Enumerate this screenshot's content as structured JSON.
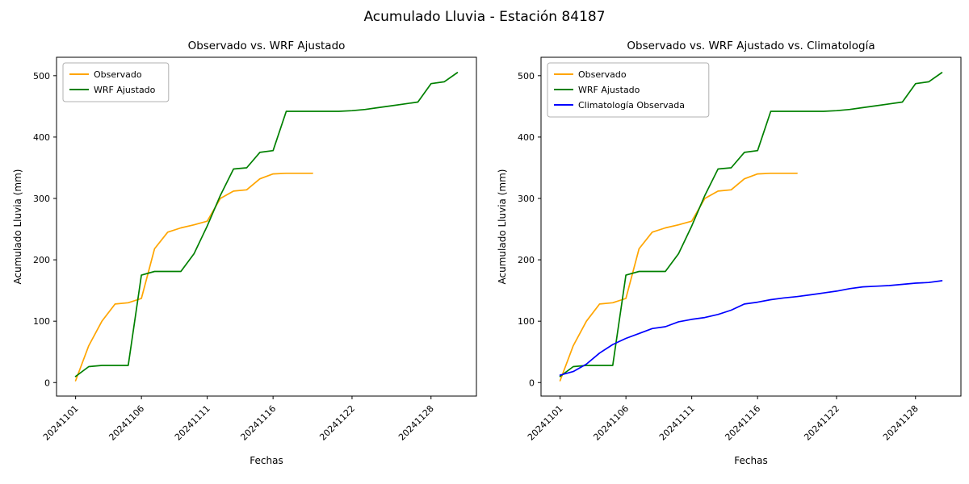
{
  "figure": {
    "suptitle": "Acumulado Lluvia - Estación 84187"
  },
  "chart_data": [
    {
      "type": "line",
      "title": "Observado vs. WRF Ajustado",
      "xlabel": "Fechas",
      "ylabel": "Acumulado Lluvia (mm)",
      "ylim": [
        -22,
        530
      ],
      "yticks": [
        0,
        100,
        200,
        300,
        400,
        500
      ],
      "x": [
        "20241101",
        "20241102",
        "20241103",
        "20241104",
        "20241105",
        "20241106",
        "20241107",
        "20241108",
        "20241109",
        "20241110",
        "20241111",
        "20241112",
        "20241113",
        "20241114",
        "20241115",
        "20241116",
        "20241117",
        "20241118",
        "20241119",
        "20241120",
        "20241121",
        "20241122",
        "20241123",
        "20241124",
        "20241125",
        "20241126",
        "20241127",
        "20241128",
        "20241129",
        "20241130"
      ],
      "xtick_indices": [
        0,
        5,
        10,
        15,
        21,
        27
      ],
      "xtick_labels": [
        "20241101",
        "20241106",
        "20241111",
        "20241116",
        "20241122",
        "20241128"
      ],
      "grid": false,
      "legend_position": "upper left",
      "series": [
        {
          "name": "Observado",
          "color": "#FFA500",
          "values": [
            3,
            60,
            100,
            128,
            130,
            137,
            218,
            245,
            252,
            257,
            263,
            300,
            312,
            314,
            332,
            340,
            341,
            341,
            341
          ]
        },
        {
          "name": "WRF Ajustado",
          "color": "#008000",
          "values": [
            10,
            26,
            28,
            28,
            28,
            175,
            181,
            181,
            181,
            210,
            255,
            305,
            348,
            350,
            375,
            378,
            442,
            442,
            442,
            442,
            442,
            443,
            445,
            448,
            451,
            454,
            457,
            487,
            490,
            505
          ]
        }
      ]
    },
    {
      "type": "line",
      "title": "Observado vs. WRF Ajustado vs. Climatología",
      "xlabel": "Fechas",
      "ylabel": "Acumulado Lluvia (mm)",
      "ylim": [
        -22,
        530
      ],
      "yticks": [
        0,
        100,
        200,
        300,
        400,
        500
      ],
      "x": [
        "20241101",
        "20241102",
        "20241103",
        "20241104",
        "20241105",
        "20241106",
        "20241107",
        "20241108",
        "20241109",
        "20241110",
        "20241111",
        "20241112",
        "20241113",
        "20241114",
        "20241115",
        "20241116",
        "20241117",
        "20241118",
        "20241119",
        "20241120",
        "20241121",
        "20241122",
        "20241123",
        "20241124",
        "20241125",
        "20241126",
        "20241127",
        "20241128",
        "20241129",
        "20241130"
      ],
      "xtick_indices": [
        0,
        5,
        10,
        15,
        21,
        27
      ],
      "xtick_labels": [
        "20241101",
        "20241106",
        "20241111",
        "20241116",
        "20241122",
        "20241128"
      ],
      "grid": false,
      "legend_position": "upper left",
      "series": [
        {
          "name": "Observado",
          "color": "#FFA500",
          "values": [
            3,
            60,
            100,
            128,
            130,
            137,
            218,
            245,
            252,
            257,
            263,
            300,
            312,
            314,
            332,
            340,
            341,
            341,
            341
          ]
        },
        {
          "name": "WRF Ajustado",
          "color": "#008000",
          "values": [
            10,
            26,
            28,
            28,
            28,
            175,
            181,
            181,
            181,
            210,
            255,
            305,
            348,
            350,
            375,
            378,
            442,
            442,
            442,
            442,
            442,
            443,
            445,
            448,
            451,
            454,
            457,
            487,
            490,
            505
          ]
        },
        {
          "name": "Climatología Observada",
          "color": "#0000FF",
          "values": [
            12,
            18,
            30,
            48,
            62,
            72,
            80,
            88,
            91,
            99,
            103,
            106,
            111,
            118,
            128,
            131,
            135,
            138,
            140,
            143,
            146,
            149,
            153,
            156,
            157,
            158,
            160,
            162,
            163,
            166
          ]
        }
      ]
    }
  ]
}
